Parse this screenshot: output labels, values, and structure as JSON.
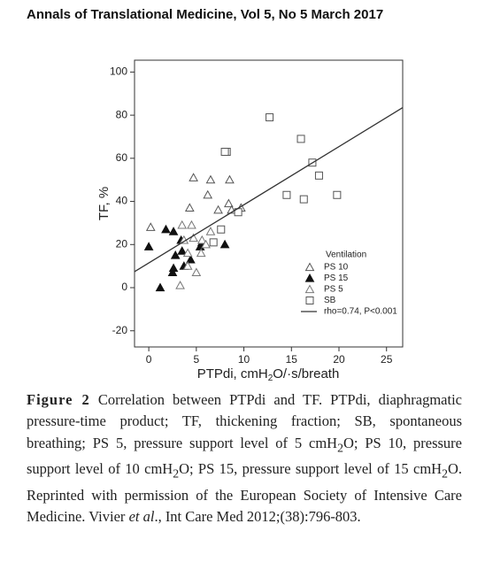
{
  "header": {
    "title": "Annals of Translational Medicine, Vol 5, No 5 March 2017"
  },
  "chart_data": {
    "type": "scatter",
    "y_label": "TF, %",
    "x_label": [
      "PTPdi, cmH",
      "2",
      "O/·s/breath"
    ],
    "legend_title": "Ventilation",
    "legend": "lower right",
    "xlim": [
      -1.5,
      26.7
    ],
    "ylim": [
      -27.5,
      105.5
    ],
    "xticks": [
      0,
      5,
      10,
      15,
      20,
      25
    ],
    "yticks": [
      -20,
      0,
      20,
      40,
      60,
      80,
      100
    ],
    "series": [
      {
        "name": "PS 10",
        "marker": "triangle-open",
        "color": "#555555",
        "x": [
          0.2,
          4.7,
          6.5,
          8.5,
          6.2,
          7.3,
          8.4,
          9.7,
          4.3,
          8.7
        ],
        "values": [
          28,
          51,
          50,
          50,
          43,
          36,
          39,
          37,
          37,
          36
        ]
      },
      {
        "name": "PS 15",
        "marker": "triangle-filled",
        "color": "#111111",
        "x": [
          0.0,
          1.8,
          2.6,
          3.4,
          2.8,
          3.5,
          4.4,
          2.6,
          2.5,
          3.7,
          5.6,
          5.4,
          8.0,
          1.2
        ],
        "values": [
          19,
          27,
          26,
          22,
          15,
          17,
          13,
          9,
          7,
          10,
          21,
          19,
          20,
          0
        ]
      },
      {
        "name": "PS 5",
        "marker": "triangle-open",
        "color": "#777777",
        "x": [
          3.5,
          4.5,
          4.7,
          5.6,
          4.1,
          5.0,
          4.1,
          3.3,
          6.0,
          6.5,
          3.7,
          5.5
        ],
        "values": [
          29,
          29,
          23,
          22,
          16,
          7,
          10,
          1,
          20,
          26,
          22,
          16
        ]
      },
      {
        "name": "SB",
        "marker": "square-open",
        "color": "#555555",
        "x": [
          12.7,
          16.0,
          17.2,
          17.9,
          19.8,
          16.3,
          14.5,
          8.2,
          8.0,
          9.4,
          7.6,
          6.8
        ],
        "values": [
          79,
          69,
          58,
          52,
          43,
          41,
          43,
          63,
          63,
          35,
          27,
          21
        ]
      },
      {
        "name": "rho=0.74, P<0.001",
        "marker": "line",
        "color": "#333333",
        "x": [
          -1.5,
          26.7
        ],
        "values": [
          7.4,
          83.5
        ]
      }
    ]
  },
  "caption": {
    "label": "Figure 2",
    "parts": [
      " Correlation between PTPdi and TF. PTPdi, diaphragmatic pressure-time product; TF, thickening fraction; SB, spontaneous breathing; PS 5, pressure support level of 5 cmH",
      "2",
      "O; PS 10, pressure support level of 10 cmH",
      "2",
      "O; PS 15, pressure support level of 15 cmH",
      "2",
      "O. Reprinted with permission of the European Society of Intensive Care Medicine. Vivier ",
      "et al",
      "., Int Care Med 2012;(38):796-803."
    ]
  }
}
